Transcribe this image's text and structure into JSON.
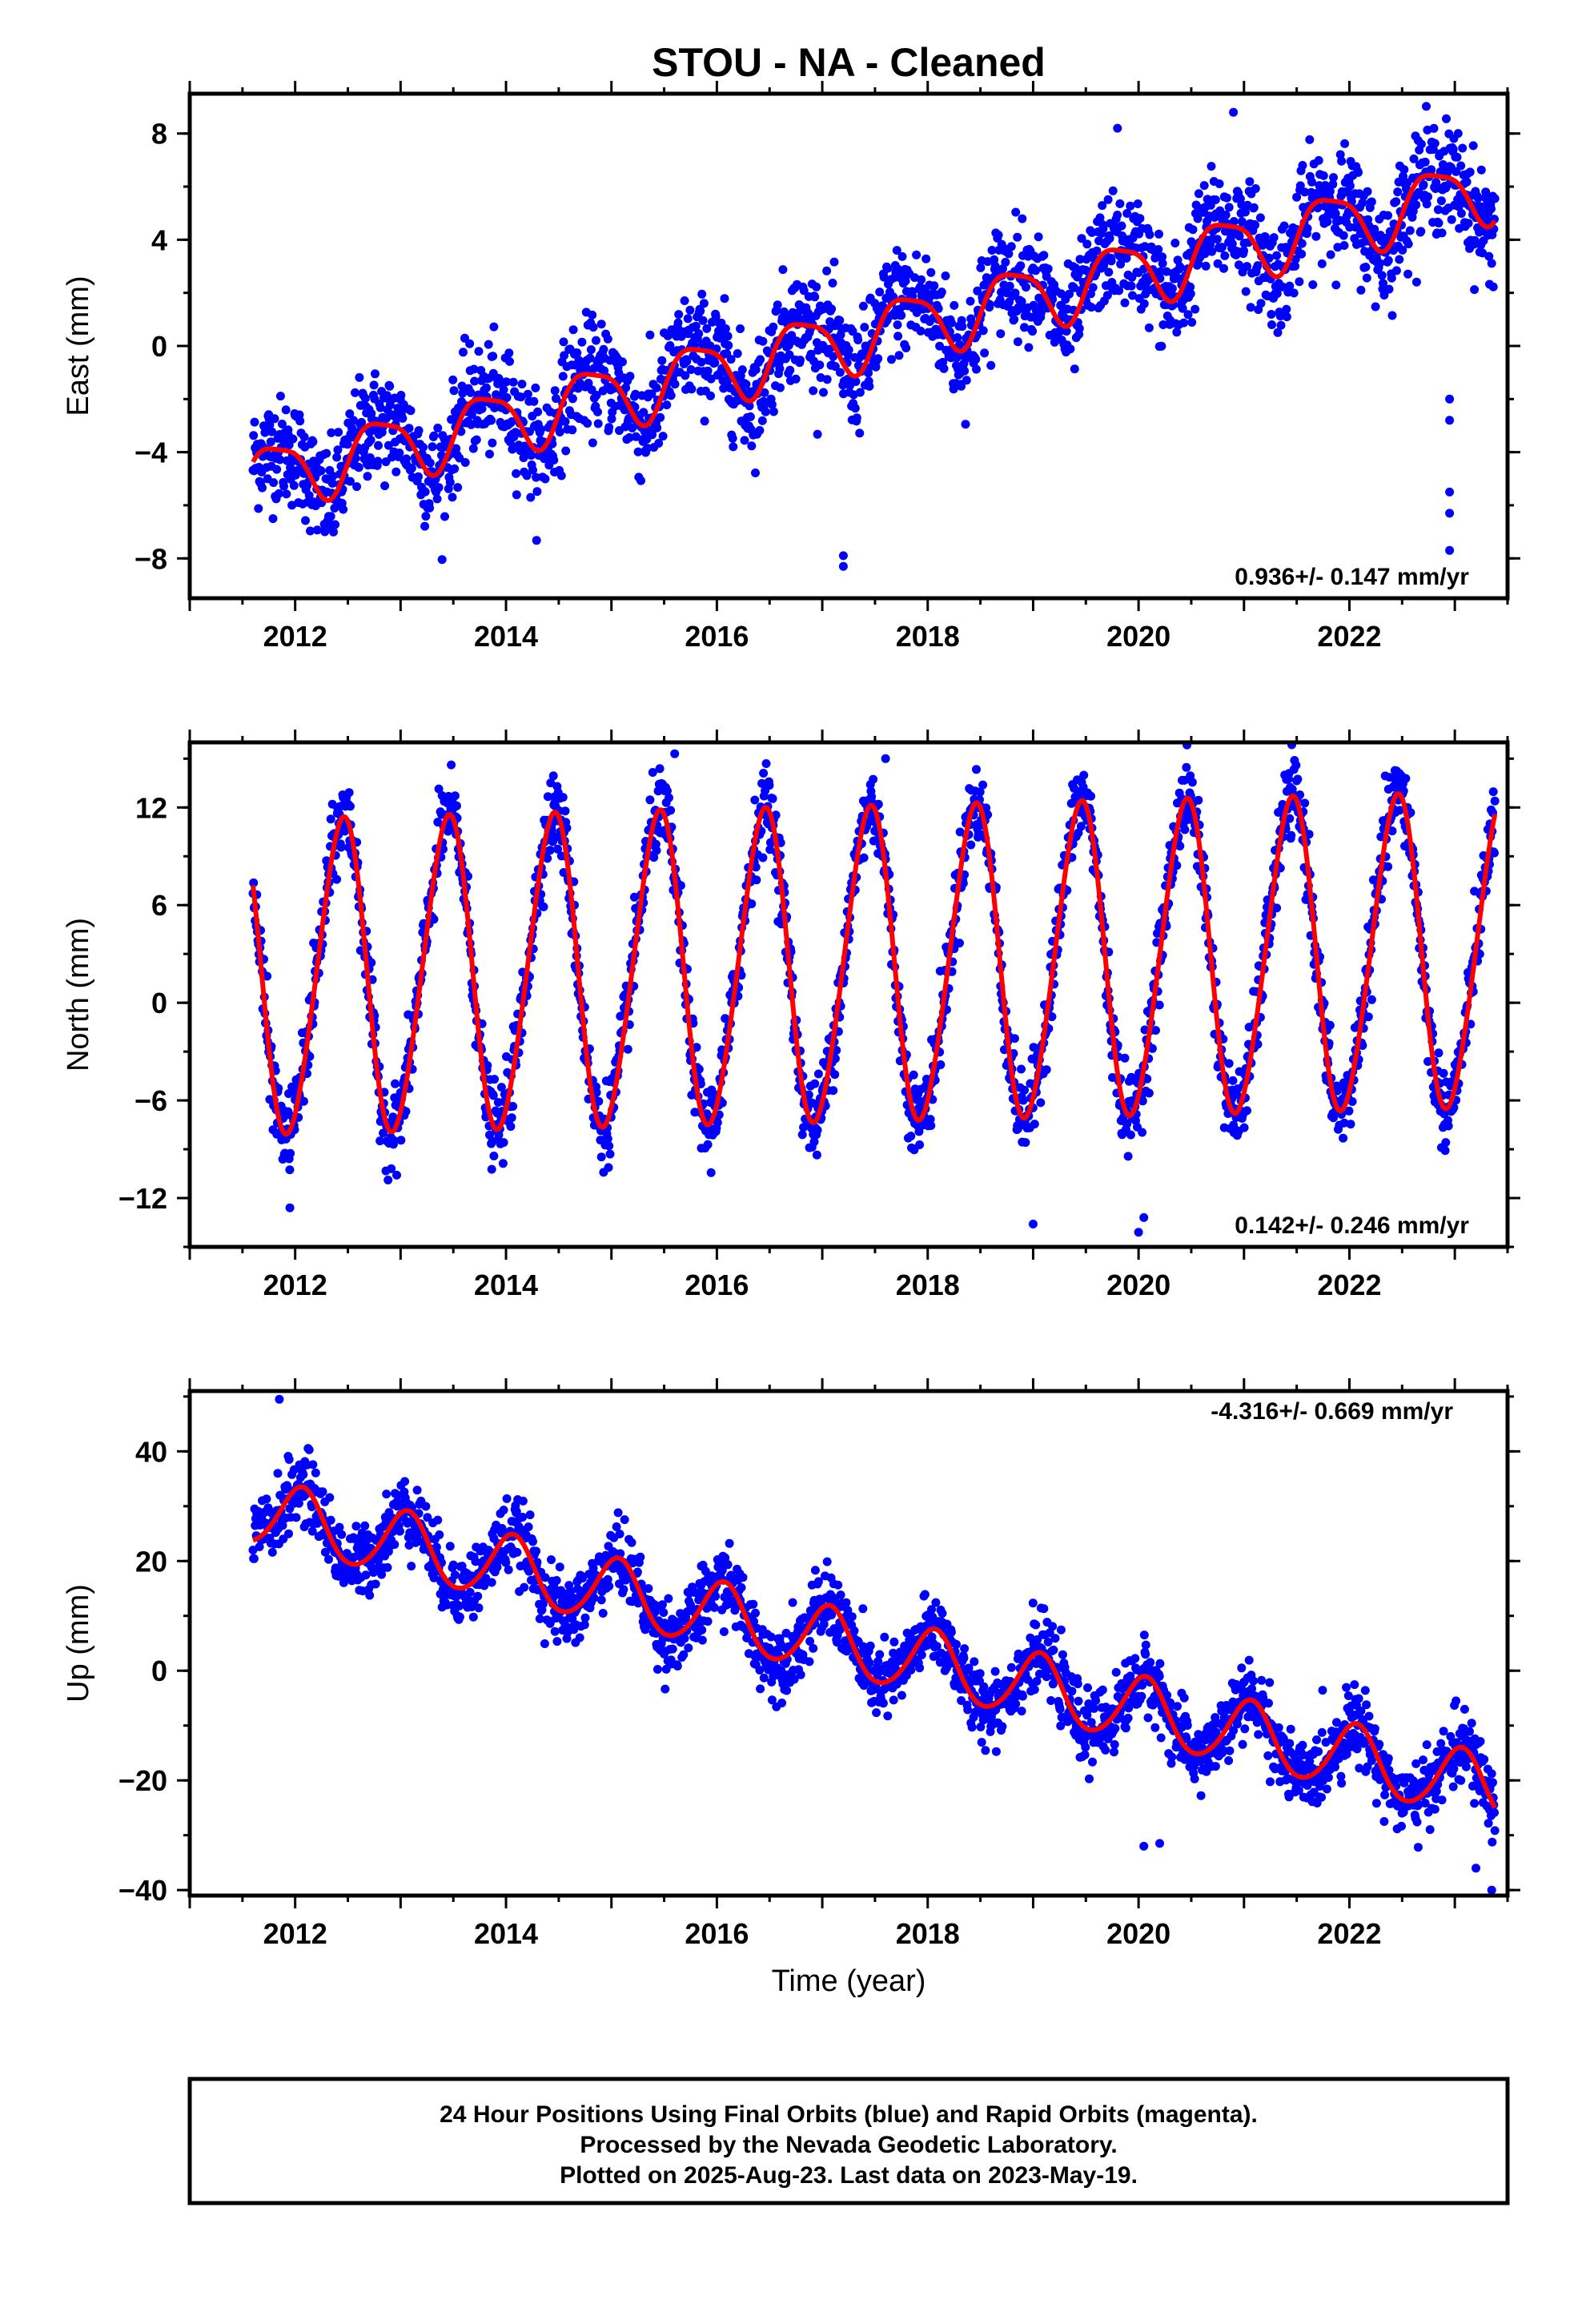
{
  "title": "STOU  - NA - Cleaned",
  "colors": {
    "data": "#0000ff",
    "model": "#ff0000",
    "frame": "#000000"
  },
  "xlabel": "Time (year)",
  "footer": {
    "line1": "24 Hour Positions Using Final Orbits (blue) and Rapid Orbits (magenta).",
    "line2": "Processed by the Nevada Geodetic Laboratory.",
    "line3": "Plotted on 2025-Aug-23. Last data on 2023-May-19."
  },
  "chart_data": [
    {
      "type": "scatter",
      "ylabel": "East (mm)",
      "rate_label": "0.936+/- 0.147 mm/yr",
      "xlim": [
        2011.0,
        2023.5
      ],
      "ylim": [
        -9.5,
        9.5
      ],
      "xticks": [
        "2012",
        "2014",
        "2016",
        "2018",
        "2020",
        "2022"
      ],
      "yticks": [
        "-8",
        "-4",
        "0",
        "4",
        "8"
      ],
      "x_range": [
        2011.6,
        2023.38
      ],
      "model": {
        "offset": -5.0,
        "rate": 0.936,
        "t0": 2011.6,
        "annual_amp": 1.2,
        "annual_phase": 2.8,
        "semiannual_amp": 0.3,
        "semiannual_phase": 0.5
      },
      "noise_sd": 1.0,
      "outliers": [
        {
          "x": 2017.2,
          "y": -8.3
        },
        {
          "x": 2017.2,
          "y": -7.9
        },
        {
          "x": 2022.95,
          "y": -2.0
        },
        {
          "x": 2022.95,
          "y": -2.8
        },
        {
          "x": 2022.95,
          "y": -5.5
        },
        {
          "x": 2022.95,
          "y": -6.3
        },
        {
          "x": 2022.95,
          "y": -7.7
        },
        {
          "x": 2019.8,
          "y": 8.2
        },
        {
          "x": 2020.9,
          "y": 8.8
        }
      ]
    },
    {
      "type": "scatter",
      "ylabel": "North (mm)",
      "rate_label": "0.142+/- 0.246 mm/yr",
      "xlim": [
        2011.0,
        2023.5
      ],
      "ylim": [
        -15,
        16
      ],
      "xticks": [
        "2012",
        "2014",
        "2016",
        "2018",
        "2020",
        "2022"
      ],
      "yticks": [
        "-12",
        "-6",
        "0",
        "6",
        "12"
      ],
      "x_range": [
        2011.6,
        2023.38
      ],
      "model": {
        "offset": 1.4,
        "rate": 0.142,
        "t0": 2011.6,
        "annual_amp": 9.6,
        "annual_phase": -1.2,
        "semiannual_amp": 0.8,
        "semiannual_phase": 1.0
      },
      "noise_sd": 1.2,
      "outliers": [
        {
          "x": 2011.95,
          "y": -12.6
        },
        {
          "x": 2019.0,
          "y": -13.6
        },
        {
          "x": 2020.0,
          "y": -14.1
        },
        {
          "x": 2020.05,
          "y": -13.2
        },
        {
          "x": 2017.6,
          "y": 15.0
        },
        {
          "x": 2015.6,
          "y": 15.3
        }
      ]
    },
    {
      "type": "scatter",
      "ylabel": "Up (mm)",
      "rate_label": "-4.316+/- 0.669 mm/yr",
      "xlim": [
        2011.0,
        2023.5
      ],
      "ylim": [
        -41,
        51
      ],
      "xticks": [
        "2012",
        "2014",
        "2016",
        "2018",
        "2020",
        "2022"
      ],
      "yticks": [
        "-40",
        "-20",
        "0",
        "20",
        "40"
      ],
      "x_range": [
        2011.6,
        2023.38
      ],
      "model": {
        "offset": 29.0,
        "rate": -4.316,
        "t0": 2011.6,
        "annual_amp": 6.0,
        "annual_phase": 1.2,
        "semiannual_amp": 0.6,
        "semiannual_phase": 0.3
      },
      "noise_sd": 3.2,
      "outliers": [
        {
          "x": 2011.85,
          "y": 49.5
        },
        {
          "x": 2020.05,
          "y": -32.0
        },
        {
          "x": 2020.2,
          "y": -31.5
        },
        {
          "x": 2023.35,
          "y": -40.0
        },
        {
          "x": 2023.2,
          "y": -36.0
        }
      ]
    }
  ]
}
